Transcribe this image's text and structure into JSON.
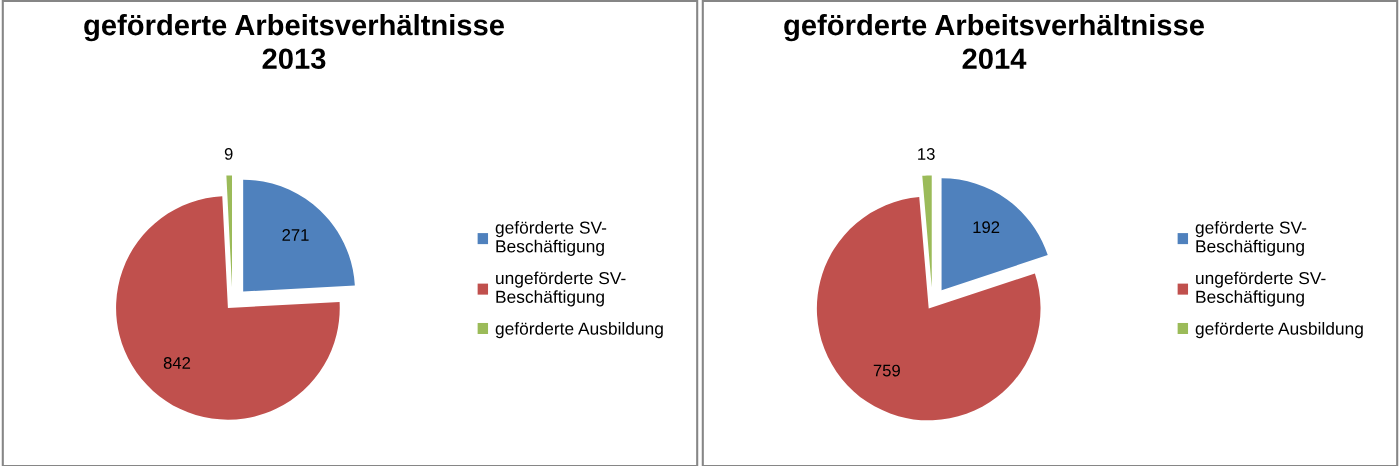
{
  "chart_data": [
    {
      "type": "pie",
      "title": "geförderte Arbeitsverhältnisse 2013",
      "categories": [
        "geförderte SV-Beschäftigung",
        "ungeförderte SV-Beschäftigung",
        "geförderte Ausbildung"
      ],
      "values": [
        271,
        842,
        9
      ],
      "colors": [
        "#4f81bd",
        "#c0504d",
        "#9bbb59"
      ],
      "data_labels": true,
      "legend": "right"
    },
    {
      "type": "pie",
      "title": "geförderte Arbeitsverhältnisse 2014",
      "categories": [
        "geförderte SV-Beschäftigung",
        "ungeförderte SV-Beschäftigung",
        "geförderte Ausbildung"
      ],
      "values": [
        192,
        759,
        13
      ],
      "colors": [
        "#4f81bd",
        "#c0504d",
        "#9bbb59"
      ],
      "data_labels": true,
      "legend": "right"
    }
  ]
}
